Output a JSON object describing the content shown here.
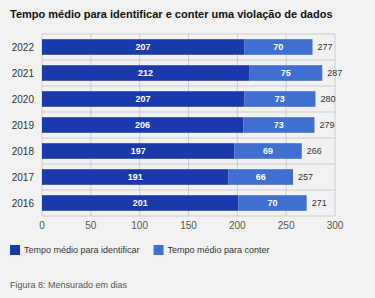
{
  "chart_data": {
    "type": "bar",
    "orientation": "horizontal",
    "stacked": true,
    "title": "Tempo médio para identificar e conter uma violação de dados",
    "caption": "Figura 8: Mensurado em dias",
    "categories": [
      "2016",
      "2017",
      "2018",
      "2019",
      "2020",
      "2021",
      "2022"
    ],
    "series": [
      {
        "name": "Tempo médio para identificar",
        "color": "#1a3aab",
        "values": [
          201,
          191,
          197,
          206,
          207,
          212,
          207
        ]
      },
      {
        "name": "Tempo médio para conter",
        "color": "#3f6fd1",
        "values": [
          70,
          66,
          69,
          73,
          73,
          75,
          70
        ]
      }
    ],
    "totals": [
      271,
      257,
      266,
      279,
      280,
      287,
      277
    ],
    "xlim": [
      0,
      300
    ],
    "xticks": [
      0,
      50,
      100,
      150,
      200,
      250,
      300
    ],
    "grid": true,
    "data_labels": true,
    "legend": "bottom"
  }
}
